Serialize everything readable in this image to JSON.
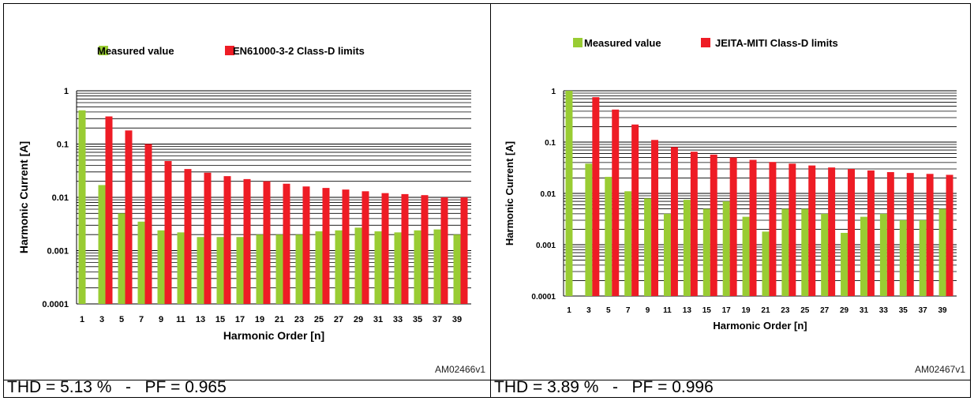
{
  "colors": {
    "measured": "#99cc33",
    "limit": "#ee1c25",
    "grid": "#000000"
  },
  "panels": [
    {
      "fig_id": "AM02466v1",
      "caption": "THD = 5.13 %   -   PF = 0.965"
    },
    {
      "fig_id": "AM02467v1",
      "caption": "THD = 3.89 %   -   PF = 0.996"
    }
  ],
  "chart_data": [
    {
      "type": "bar",
      "xlabel": "Harmonic Order [n]",
      "ylabel": "Harmonic Current [A]",
      "y_scale": "log",
      "ylim": [
        0.0001,
        1
      ],
      "y_ticks": [
        "1",
        "0.1",
        "0.01",
        "0.001",
        "0.0001"
      ],
      "grid": true,
      "legend_position": "top",
      "categories": [
        "1",
        "3",
        "5",
        "7",
        "9",
        "11",
        "13",
        "15",
        "17",
        "19",
        "21",
        "23",
        "25",
        "27",
        "29",
        "31",
        "33",
        "35",
        "37",
        "39"
      ],
      "series": [
        {
          "name": "Measured value",
          "color": "#99cc33",
          "values": [
            0.43,
            0.017,
            0.005,
            0.0035,
            0.0024,
            0.0022,
            0.0018,
            0.0018,
            0.0018,
            0.002,
            0.002,
            0.002,
            0.0023,
            0.0024,
            0.0027,
            0.0023,
            0.0022,
            0.0024,
            0.0025,
            0.002
          ]
        },
        {
          "name": "EN61000-3-2 Class-D limits",
          "color": "#ee1c25",
          "values": [
            null,
            0.33,
            0.18,
            0.1,
            0.048,
            0.034,
            0.029,
            0.025,
            0.022,
            0.02,
            0.018,
            0.016,
            0.015,
            0.014,
            0.013,
            0.012,
            0.0115,
            0.011,
            0.01,
            0.01
          ]
        }
      ]
    },
    {
      "type": "bar",
      "xlabel": "Harmonic Order [n]",
      "ylabel": "Harmonic Current [A]",
      "y_scale": "log",
      "ylim": [
        0.0001,
        1
      ],
      "y_ticks": [
        "1",
        "0.1",
        "0.01",
        "0.001",
        "0.0001"
      ],
      "grid": true,
      "legend_position": "top",
      "categories": [
        "1",
        "3",
        "5",
        "7",
        "9",
        "11",
        "13",
        "15",
        "17",
        "19",
        "21",
        "23",
        "25",
        "27",
        "29",
        "31",
        "33",
        "35",
        "37",
        "39"
      ],
      "series": [
        {
          "name": "Measured value",
          "color": "#99cc33",
          "values": [
            1.0,
            0.038,
            0.021,
            0.011,
            0.008,
            0.004,
            0.0075,
            0.005,
            0.007,
            0.0035,
            0.0018,
            0.005,
            0.005,
            0.004,
            0.0017,
            0.0035,
            0.004,
            0.003,
            0.003,
            0.005
          ]
        },
        {
          "name": "JEITA-MITI Class-D limits",
          "color": "#ee1c25",
          "values": [
            null,
            0.75,
            0.43,
            0.22,
            0.11,
            0.08,
            0.065,
            0.057,
            0.05,
            0.045,
            0.041,
            0.038,
            0.035,
            0.032,
            0.03,
            0.028,
            0.026,
            0.025,
            0.024,
            0.023
          ]
        }
      ]
    }
  ]
}
